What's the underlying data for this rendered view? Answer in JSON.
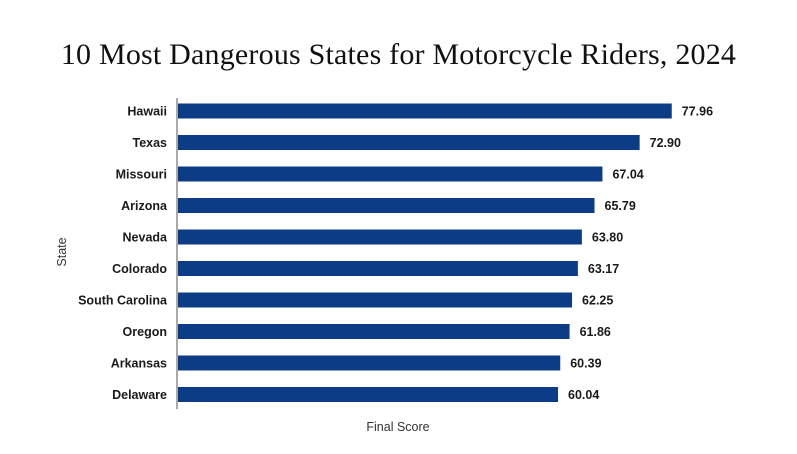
{
  "colors": {
    "bar": "#0d3c87",
    "axis": "#555555",
    "background": "#ffffff"
  },
  "chart_data": {
    "type": "bar",
    "orientation": "horizontal",
    "title": "10 Most Dangerous States for Motorcycle Riders, 2024",
    "xlabel": "Final Score",
    "ylabel": "State",
    "categories": [
      "Hawaii",
      "Texas",
      "Missouri",
      "Arizona",
      "Nevada",
      "Colorado",
      "South Carolina",
      "Oregon",
      "Arkansas",
      "Delaware"
    ],
    "values": [
      77.96,
      72.9,
      67.04,
      65.79,
      63.8,
      63.17,
      62.25,
      61.86,
      60.39,
      60.04
    ],
    "value_labels": [
      "77.96",
      "72.90",
      "67.04",
      "65.79",
      "63.80",
      "63.17",
      "62.25",
      "61.86",
      "60.39",
      "60.04"
    ],
    "xlim": [
      0,
      78
    ],
    "grid": false,
    "legend": "none"
  }
}
